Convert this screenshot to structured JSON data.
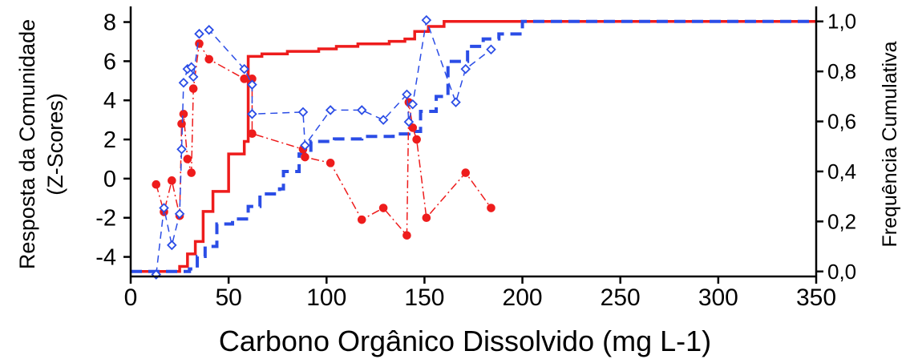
{
  "chart_data": {
    "type": "line",
    "title": "",
    "xlabel": "Carbono Orgânico Dissolvido (mg L-1)",
    "ylabel_left_line1": "Resposta da Comunidade",
    "ylabel_left_line2": "(Z-Scores)",
    "ylabel_right": "Frequência Cumulativa",
    "xlim": [
      0,
      350
    ],
    "ylim_left": [
      -5.0,
      8.8
    ],
    "ylim_right": [
      -0.02,
      1.06
    ],
    "x_ticks": [
      0,
      50,
      100,
      150,
      200,
      250,
      300,
      350
    ],
    "x_tick_labels": [
      "0",
      "50",
      "100",
      "150",
      "200",
      "250",
      "300",
      "350"
    ],
    "y_left_ticks": [
      8,
      6,
      4,
      2,
      0,
      -2,
      -4
    ],
    "y_left_tick_labels": [
      "8",
      "6",
      "4",
      "2",
      "0",
      "-2",
      "-4"
    ],
    "y_right_ticks": [
      1.0,
      0.8,
      0.6,
      0.4,
      0.2,
      0.0
    ],
    "y_right_tick_labels": [
      "1,0",
      "0,8",
      "0,6",
      "0,4",
      "0,2",
      "0,0"
    ],
    "grid": false,
    "colors": {
      "red": "#ee1c1c",
      "blue": "#2b4de6"
    },
    "series": [
      {
        "kind": "points",
        "axis": "left",
        "color": "#ee1c1c",
        "marker": "filled-circle",
        "line_style": "dash-dot",
        "points": [
          [
            13,
            -0.3
          ],
          [
            17,
            -1.7
          ],
          [
            21,
            -0.1
          ],
          [
            25,
            -1.9
          ],
          [
            26,
            2.8
          ],
          [
            27,
            3.3
          ],
          [
            29,
            1.0
          ],
          [
            31,
            0.3
          ],
          [
            32,
            4.6
          ],
          [
            35,
            6.9
          ],
          [
            40,
            6.1
          ],
          [
            58,
            5.1
          ],
          [
            62,
            5.1
          ],
          [
            62,
            2.3
          ],
          [
            88,
            1.5
          ],
          [
            89,
            1.1
          ],
          [
            102,
            0.8
          ],
          [
            118,
            -2.1
          ],
          [
            129,
            -1.5
          ],
          [
            141,
            -2.9
          ],
          [
            142,
            3.9
          ],
          [
            144,
            2.6
          ],
          [
            146,
            2.0
          ],
          [
            151,
            -2.0
          ],
          [
            171,
            0.3
          ],
          [
            184,
            -1.5
          ]
        ]
      },
      {
        "kind": "points",
        "axis": "left",
        "color": "#2b4de6",
        "marker": "open-diamond",
        "line_style": "dashed",
        "points": [
          [
            13,
            -4.9
          ],
          [
            17,
            -1.5
          ],
          [
            21,
            -3.4
          ],
          [
            25,
            -1.8
          ],
          [
            26,
            1.5
          ],
          [
            27,
            4.9
          ],
          [
            29,
            5.6
          ],
          [
            31,
            5.7
          ],
          [
            32,
            5.2
          ],
          [
            35,
            7.4
          ],
          [
            40,
            7.6
          ],
          [
            58,
            5.6
          ],
          [
            62,
            4.8
          ],
          [
            62,
            3.3
          ],
          [
            88,
            3.4
          ],
          [
            89,
            1.7
          ],
          [
            102,
            3.5
          ],
          [
            118,
            3.5
          ],
          [
            129,
            3.0
          ],
          [
            141,
            4.3
          ],
          [
            142,
            2.9
          ],
          [
            144,
            3.8
          ],
          [
            151,
            8.1
          ],
          [
            166,
            3.9
          ],
          [
            171,
            5.6
          ],
          [
            184,
            6.6
          ]
        ]
      },
      {
        "kind": "step",
        "axis": "right",
        "color": "#ee1c1c",
        "line_style": "solid",
        "points": [
          [
            0,
            0.0
          ],
          [
            13,
            0.0
          ],
          [
            25,
            0.02
          ],
          [
            29,
            0.07
          ],
          [
            33,
            0.12
          ],
          [
            37,
            0.24
          ],
          [
            42,
            0.32
          ],
          [
            50,
            0.47
          ],
          [
            58,
            0.52
          ],
          [
            60,
            0.86
          ],
          [
            67,
            0.87
          ],
          [
            80,
            0.88
          ],
          [
            96,
            0.89
          ],
          [
            105,
            0.9
          ],
          [
            116,
            0.91
          ],
          [
            132,
            0.92
          ],
          [
            140,
            0.93
          ],
          [
            145,
            0.96
          ],
          [
            152,
            0.98
          ],
          [
            160,
            1.0
          ],
          [
            175,
            1.0
          ],
          [
            350,
            1.0
          ]
        ]
      },
      {
        "kind": "step",
        "axis": "right",
        "color": "#2b4de6",
        "line_style": "dashed",
        "points": [
          [
            0,
            0.0
          ],
          [
            13,
            0.0
          ],
          [
            30,
            0.01
          ],
          [
            34,
            0.06
          ],
          [
            38,
            0.1
          ],
          [
            44,
            0.19
          ],
          [
            52,
            0.21
          ],
          [
            60,
            0.26
          ],
          [
            66,
            0.31
          ],
          [
            76,
            0.33
          ],
          [
            78,
            0.4
          ],
          [
            86,
            0.47
          ],
          [
            92,
            0.52
          ],
          [
            104,
            0.53
          ],
          [
            118,
            0.54
          ],
          [
            134,
            0.55
          ],
          [
            142,
            0.56
          ],
          [
            148,
            0.64
          ],
          [
            156,
            0.7
          ],
          [
            162,
            0.84
          ],
          [
            172,
            0.9
          ],
          [
            180,
            0.93
          ],
          [
            188,
            0.95
          ],
          [
            200,
            1.0
          ],
          [
            350,
            1.0
          ]
        ]
      }
    ]
  }
}
